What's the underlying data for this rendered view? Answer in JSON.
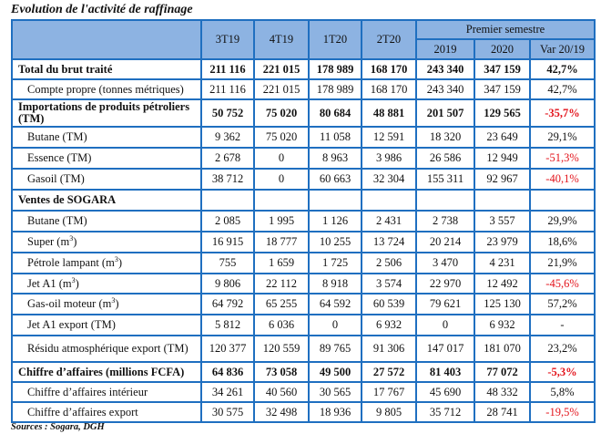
{
  "title": "Evolution de l'activité de raffinage",
  "header": {
    "cols": [
      "3T19",
      "4T19",
      "1T20",
      "2T20"
    ],
    "group": "Premier semestre",
    "subcols": [
      "2019",
      "2020",
      "Var 20/19"
    ]
  },
  "rows": [
    {
      "label": "Total du brut traité",
      "bold": true,
      "indent": false,
      "values": [
        "211 116",
        "221 015",
        "178 989",
        "168 170",
        "243 340",
        "347 159",
        "42,7%"
      ],
      "neg": false
    },
    {
      "label": "Compte propre (tonnes métriques)",
      "bold": false,
      "indent": true,
      "values": [
        "211 116",
        "221 015",
        "178 989",
        "168 170",
        "243 340",
        "347 159",
        "42,7%"
      ],
      "neg": false
    },
    {
      "label": "Importations de produits pétroliers (TM)",
      "bold": true,
      "indent": false,
      "values": [
        "50 752",
        "75 020",
        "80 684",
        "48 881",
        "201 507",
        "129 565",
        "-35,7%"
      ],
      "neg": true
    },
    {
      "label": "Butane (TM)",
      "bold": false,
      "indent": true,
      "values": [
        "9 362",
        "75 020",
        "11 058",
        "12 591",
        "18 320",
        "23 649",
        "29,1%"
      ],
      "neg": false
    },
    {
      "label": "Essence (TM)",
      "bold": false,
      "indent": true,
      "values": [
        "2 678",
        "0",
        "8 963",
        "3 986",
        "26 586",
        "12 949",
        "-51,3%"
      ],
      "neg": true
    },
    {
      "label": "Gasoil (TM)",
      "bold": false,
      "indent": true,
      "values": [
        "38 712",
        "0",
        "60 663",
        "32 304",
        "155 311",
        "92 967",
        "-40,1%"
      ],
      "neg": true
    },
    {
      "label": "Ventes de SOGARA",
      "bold": true,
      "indent": false,
      "values": [
        "",
        "",
        "",
        "",
        "",
        "",
        ""
      ],
      "neg": false
    },
    {
      "label": "Butane (TM)",
      "bold": false,
      "indent": true,
      "values": [
        "2 085",
        "1 995",
        "1 126",
        "2 431",
        "2 738",
        "3 557",
        "29,9%"
      ],
      "neg": false
    },
    {
      "label": "Super (m³)",
      "bold": false,
      "indent": true,
      "values": [
        "16 915",
        "18 777",
        "10 255",
        "13 724",
        "20 214",
        "23 979",
        "18,6%"
      ],
      "neg": false
    },
    {
      "label": "Pétrole lampant (m³)",
      "bold": false,
      "indent": true,
      "values": [
        "755",
        "1 659",
        "1 725",
        "2 506",
        "3 470",
        "4 231",
        "21,9%"
      ],
      "neg": false
    },
    {
      "label": "Jet A1 (m³)",
      "bold": false,
      "indent": true,
      "values": [
        "9 806",
        "22 112",
        "8 918",
        "3 574",
        "22 970",
        "12 492",
        "-45,6%"
      ],
      "neg": true
    },
    {
      "label": "Gas-oil moteur (m³)",
      "bold": false,
      "indent": true,
      "values": [
        "64 792",
        "65 255",
        "64 592",
        "60 539",
        "79 621",
        "125 130",
        "57,2%"
      ],
      "neg": false
    },
    {
      "label": "Jet A1 export (TM)",
      "bold": false,
      "indent": true,
      "values": [
        "5 812",
        "6 036",
        "0",
        "6 932",
        "0",
        "6 932",
        "-"
      ],
      "neg": false
    },
    {
      "label": "Résidu atmosphérique export (TM)",
      "bold": false,
      "indent": true,
      "values": [
        "120 377",
        "120 559",
        "89 765",
        "91 306",
        "147 017",
        "181 070",
        "23,2%"
      ],
      "neg": false
    },
    {
      "label": "Chiffre d’affaires (millions FCFA)",
      "bold": true,
      "indent": false,
      "values": [
        "64 836",
        "73 058",
        "49 500",
        "27 572",
        "81 403",
        "77 072",
        "-5,3%"
      ],
      "neg": true
    },
    {
      "label": "Chiffre d’affaires intérieur",
      "bold": false,
      "indent": true,
      "values": [
        "34 261",
        "40 560",
        "30 565",
        "17 767",
        "45 690",
        "48 332",
        "5,8%"
      ],
      "neg": false
    },
    {
      "label": "Chiffre d’affaires export",
      "bold": false,
      "indent": true,
      "values": [
        "30 575",
        "32 498",
        "18 936",
        "9 805",
        "35 712",
        "28 741",
        "-19,5%"
      ],
      "neg": true
    }
  ],
  "source": "Sources : Sogara, DGH",
  "colors": {
    "border": "#1f6fc0",
    "header_bg": "#8db3e2",
    "negative": "#e3131b"
  }
}
